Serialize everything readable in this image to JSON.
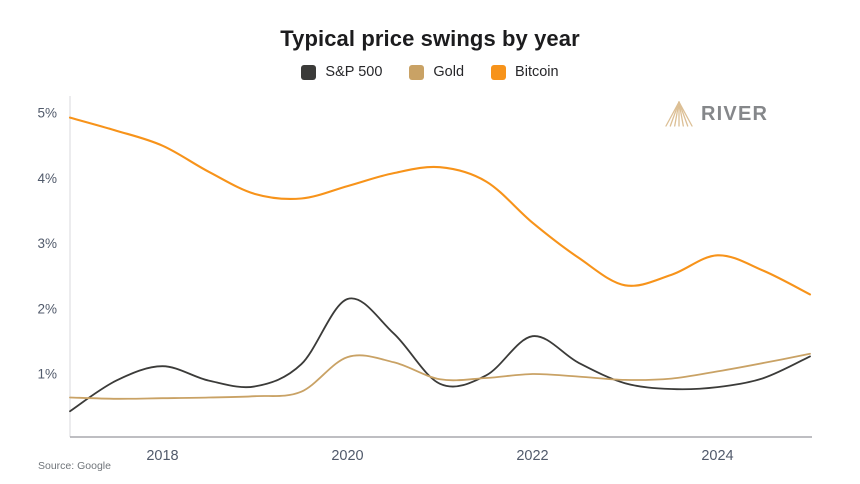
{
  "page": {
    "title": "Typical price swings by year",
    "source_note": "Source: Google",
    "brand": "RIVER"
  },
  "colors": {
    "axis_left": "#e5e5e8",
    "axis_bottom": "#a9a9ad",
    "tick_label": "#515a6b",
    "logo_triangle": "#dcbf95",
    "logo_text": "#85878a"
  },
  "chart_data": {
    "type": "line",
    "title": "Typical price swings by year",
    "xlabel": "",
    "ylabel": "",
    "unit": "%",
    "grid": false,
    "legend_position": "top",
    "xlim": [
      2017,
      2025
    ],
    "ylim": [
      0.035,
      5.2
    ],
    "x": [
      2017,
      2017.5,
      2018,
      2018.5,
      2019,
      2019.5,
      2020,
      2020.5,
      2021,
      2021.5,
      2022,
      2022.5,
      2023,
      2023.5,
      2024,
      2024.5,
      2025
    ],
    "series": [
      {
        "name": "S&P 500",
        "color": "#3b3b39",
        "stroke_width": 1.8,
        "values": [
          0.43,
          0.9,
          1.12,
          0.9,
          0.81,
          1.15,
          2.15,
          1.62,
          0.85,
          0.98,
          1.58,
          1.17,
          0.86,
          0.77,
          0.8,
          0.94,
          1.27
        ]
      },
      {
        "name": "Gold",
        "color": "#c9a265",
        "stroke_width": 1.8,
        "values": [
          0.64,
          0.62,
          0.63,
          0.64,
          0.66,
          0.73,
          1.26,
          1.18,
          0.92,
          0.94,
          1.0,
          0.96,
          0.91,
          0.93,
          1.04,
          1.17,
          1.31
        ]
      },
      {
        "name": "Bitcoin",
        "color": "#f7931a",
        "stroke_width": 2.1,
        "values": [
          4.93,
          4.73,
          4.5,
          4.1,
          3.76,
          3.69,
          3.88,
          4.08,
          4.17,
          3.95,
          3.32,
          2.78,
          2.36,
          2.52,
          2.82,
          2.58,
          2.22
        ]
      }
    ],
    "x_ticks": [
      {
        "v": 2018,
        "label": "2018"
      },
      {
        "v": 2020,
        "label": "2020"
      },
      {
        "v": 2022,
        "label": "2022"
      },
      {
        "v": 2024,
        "label": "2024"
      }
    ],
    "y_ticks": [
      {
        "v": 5,
        "label": "5%"
      },
      {
        "v": 4,
        "label": "4%"
      },
      {
        "v": 3,
        "label": "3%"
      },
      {
        "v": 2,
        "label": "2%"
      },
      {
        "v": 1,
        "label": "1%"
      }
    ]
  }
}
